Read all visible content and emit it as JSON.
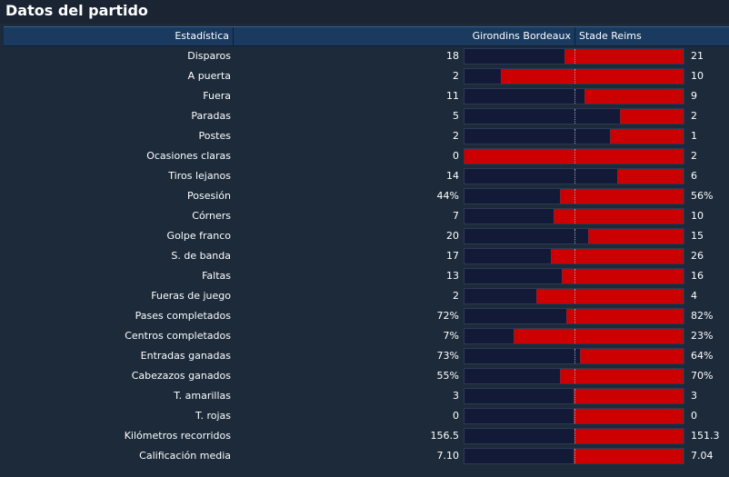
{
  "panel": {
    "title": "Datos del partido"
  },
  "table": {
    "header": {
      "stat": "Estadística",
      "home": "Girondins Bordeaux",
      "away": "Stade Reims"
    },
    "rows": [
      {
        "label": "Disparos",
        "home": "18",
        "away": "21",
        "home_share": 0.46
      },
      {
        "label": "A puerta",
        "home": "2",
        "away": "10",
        "home_share": 0.17
      },
      {
        "label": "Fuera",
        "home": "11",
        "away": "9",
        "home_share": 0.55
      },
      {
        "label": "Paradas",
        "home": "5",
        "away": "2",
        "home_share": 0.714
      },
      {
        "label": "Postes",
        "home": "2",
        "away": "1",
        "home_share": 0.667
      },
      {
        "label": "Ocasiones claras",
        "home": "0",
        "away": "2",
        "home_share": 0.0
      },
      {
        "label": "Tiros lejanos",
        "home": "14",
        "away": "6",
        "home_share": 0.7
      },
      {
        "label": "Posesión",
        "home": "44%",
        "away": "56%",
        "home_share": 0.44
      },
      {
        "label": "Córners",
        "home": "7",
        "away": "10",
        "home_share": 0.41
      },
      {
        "label": "Golpe franco",
        "home": "20",
        "away": "15",
        "home_share": 0.57
      },
      {
        "label": "S. de banda",
        "home": "17",
        "away": "26",
        "home_share": 0.4
      },
      {
        "label": "Faltas",
        "home": "13",
        "away": "16",
        "home_share": 0.45
      },
      {
        "label": "Fueras de juego",
        "home": "2",
        "away": "4",
        "home_share": 0.333
      },
      {
        "label": "Pases completados",
        "home": "72%",
        "away": "82%",
        "home_share": 0.47
      },
      {
        "label": "Centros completados",
        "home": "7%",
        "away": "23%",
        "home_share": 0.23
      },
      {
        "label": "Entradas ganadas",
        "home": "73%",
        "away": "64%",
        "home_share": 0.53
      },
      {
        "label": "Cabezazos ganados",
        "home": "55%",
        "away": "70%",
        "home_share": 0.44
      },
      {
        "label": "T. amarillas",
        "home": "3",
        "away": "3",
        "home_share": 0.5
      },
      {
        "label": "T. rojas",
        "home": "0",
        "away": "0",
        "home_share": 0.5
      },
      {
        "label": "Kilómetros recorridos",
        "home": "156.5",
        "away": "151.3",
        "home_share": 0.508
      },
      {
        "label": "Calificación media",
        "home": "7.10",
        "away": "7.04",
        "home_share": 0.502
      }
    ]
  },
  "colors": {
    "home_bar": "#121a38",
    "away_bar": "#cc0000",
    "background": "#1c2a3a",
    "header": "#1a3a60"
  }
}
